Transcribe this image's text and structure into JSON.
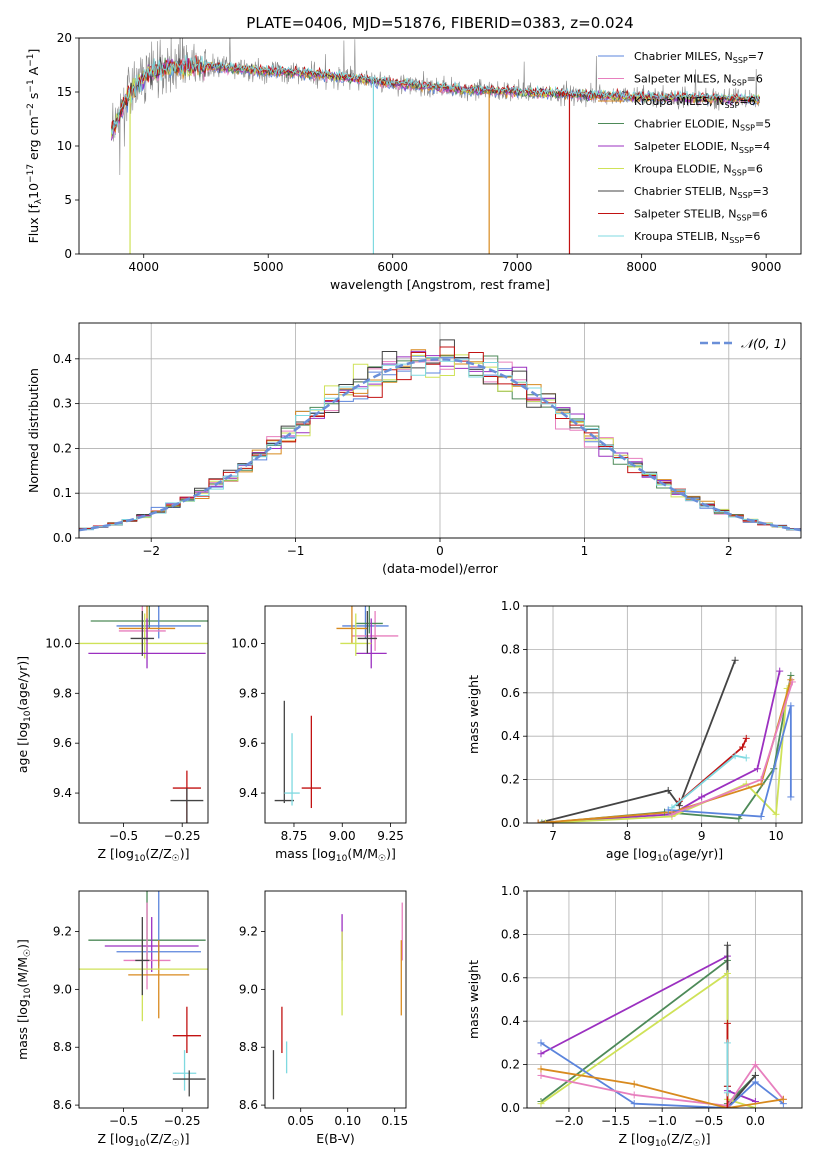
{
  "figure": {
    "title": "PLATE=0406, MJD=51876, FIBERID=0383, z=0.024"
  },
  "colors": {
    "chabrier_miles": "#5b84dc",
    "salpeter_miles": "#e77fbe",
    "kroupa_miles": "#d88a1f",
    "chabrier_elodie": "#4d8a58",
    "salpeter_elodie": "#9b30c0",
    "kroupa_elodie": "#cfe258",
    "chabrier_stelib": "#444444",
    "salpeter_stelib": "#c21212",
    "kroupa_stelib": "#7fd9e0",
    "data_spectrum": "#888888",
    "normal_curve": "#6a8fd8"
  },
  "chart_data": [
    {
      "id": "spectrum",
      "type": "line",
      "xlabel": "wavelength [Angstrom, rest frame]",
      "ylabel": "Flux [f$_\\lambda$10$^{-17}$ erg cm$^{-2}$ s$^{-1}$ A$^{-1}$]",
      "ylabel_parts": [
        "Flux [f",
        "λ",
        "10",
        "−17",
        " erg cm",
        "−2",
        " s",
        "−1",
        " A",
        "−1",
        "]"
      ],
      "xlim": [
        3480,
        9280
      ],
      "ylim": [
        0,
        20
      ],
      "xticks": [
        4000,
        5000,
        6000,
        7000,
        8000,
        9000
      ],
      "yticks": [
        0,
        5,
        10,
        15,
        20
      ],
      "legend_position": "top-right",
      "legend": [
        {
          "name": "Chabrier MILES, N",
          "sub": "SSP",
          "n": "=7"
        },
        {
          "name": "Salpeter MILES, N",
          "sub": "SSP",
          "n": "=6"
        },
        {
          "name": "Kroupa MILES, N",
          "sub": "SSP",
          "n": "=6"
        },
        {
          "name": "Chabrier ELODIE, N",
          "sub": "SSP",
          "n": "=5"
        },
        {
          "name": "Salpeter ELODIE, N",
          "sub": "SSP",
          "n": "=4"
        },
        {
          "name": "Kroupa ELODIE, N",
          "sub": "SSP",
          "n": "=6"
        },
        {
          "name": "Chabrier STELIB, N",
          "sub": "SSP",
          "n": "=3"
        },
        {
          "name": "Salpeter STELIB, N",
          "sub": "SSP",
          "n": "=6"
        },
        {
          "name": "Kroupa STELIB, N",
          "sub": "SSP",
          "n": "=6"
        }
      ],
      "continuum": {
        "x": [
          3740,
          3850,
          3950,
          4050,
          4200,
          4400,
          4600,
          4800,
          5000,
          5200,
          5500,
          5800,
          6000,
          6300,
          6600,
          7000,
          7400,
          7800,
          8200,
          8600,
          8950
        ],
        "y": [
          11.0,
          14.2,
          15.8,
          16.8,
          17.2,
          17.4,
          17.3,
          17.1,
          16.9,
          16.8,
          16.5,
          16.1,
          15.8,
          15.5,
          15.2,
          15.0,
          14.8,
          14.6,
          14.5,
          14.4,
          14.3
        ]
      },
      "dips": [
        {
          "x": 3890,
          "y": 0
        },
        {
          "x": 5845,
          "y": 0
        },
        {
          "x": 6775,
          "y": 0
        },
        {
          "x": 7420,
          "y": 0
        }
      ]
    },
    {
      "id": "residuals",
      "type": "line",
      "xlabel": "(data-model)/error",
      "ylabel": "Normed distribution",
      "xlim": [
        -2.5,
        2.5
      ],
      "ylim": [
        0,
        0.48
      ],
      "xticks": [
        -2,
        -1,
        0,
        1,
        2
      ],
      "yticks": [
        0.0,
        0.1,
        0.2,
        0.3,
        0.4
      ],
      "legend_position": "top-right",
      "legend": [
        {
          "name": "𝒩(0, 1)"
        }
      ],
      "grid": true
    },
    {
      "id": "age_vs_Z",
      "type": "scatter",
      "xlabel": "Z [log$_{10}$(Z/Z$_\\odot$)]",
      "ylabel": "age  [log$_{10}$(age/yr)]",
      "xlim": [
        -0.69,
        -0.14
      ],
      "ylim": [
        9.28,
        10.15
      ],
      "xticks": [
        -0.5,
        -0.25
      ],
      "yticks": [
        9.4,
        9.6,
        9.8,
        10.0
      ],
      "points": [
        {
          "x": -0.39,
          "y": 10.09,
          "xerr": 0.25,
          "yerr": [
            0.03,
            0.15
          ],
          "series": "chabrier_elodie"
        },
        {
          "x": -0.35,
          "y": 10.07,
          "xerr": 0.18,
          "yerr": [
            0.05,
            0.1
          ],
          "series": "chabrier_miles"
        },
        {
          "x": -0.4,
          "y": 10.06,
          "xerr": 0.12,
          "yerr": [
            0.05,
            0.18
          ],
          "series": "kroupa_miles"
        },
        {
          "x": -0.42,
          "y": 10.05,
          "xerr": 0.1,
          "yerr": [
            0.06,
            0.12
          ],
          "series": "salpeter_miles"
        },
        {
          "x": -0.41,
          "y": 10.0,
          "xerr": 0.3,
          "yerr": [
            0.06,
            0.12
          ],
          "series": "kroupa_elodie"
        },
        {
          "x": -0.4,
          "y": 9.96,
          "xerr": 0.25,
          "yerr": [
            0.06,
            0.14
          ],
          "series": "salpeter_elodie"
        },
        {
          "x": -0.42,
          "y": 10.02,
          "xerr": 0.05,
          "yerr": [
            0.07,
            0.11
          ],
          "series": "chabrier_stelib"
        },
        {
          "x": -0.23,
          "y": 9.42,
          "xerr": 0.06,
          "yerr": [
            0.3,
            0.07
          ],
          "series": "salpeter_stelib"
        },
        {
          "x": -0.23,
          "y": 9.37,
          "xerr": 0.07,
          "yerr": [
            0.3,
            0.05
          ],
          "series": "chabrier_stelib"
        }
      ]
    },
    {
      "id": "age_vs_mass",
      "type": "scatter",
      "xlabel": "mass [log$_{10}$(M/M$_\\odot$)]",
      "ylabel": "",
      "xlim": [
        8.6,
        9.33
      ],
      "ylim": [
        9.28,
        10.15
      ],
      "xticks": [
        8.75,
        9.0,
        9.25
      ],
      "yticks": [
        9.4,
        9.6,
        9.8,
        10.0
      ],
      "points": [
        {
          "x": 9.12,
          "y": 10.07,
          "xerr": 0.12,
          "yerr": [
            0.05,
            0.1
          ],
          "series": "chabrier_miles"
        },
        {
          "x": 9.17,
          "y": 10.03,
          "xerr": 0.12,
          "yerr": [
            0.06,
            0.1
          ],
          "series": "salpeter_miles"
        },
        {
          "x": 9.05,
          "y": 10.06,
          "xerr": 0.08,
          "yerr": [
            0.06,
            0.15
          ],
          "series": "kroupa_miles"
        },
        {
          "x": 9.14,
          "y": 10.08,
          "xerr": 0.07,
          "yerr": [
            0.04,
            0.12
          ],
          "series": "chabrier_elodie"
        },
        {
          "x": 9.15,
          "y": 9.96,
          "xerr": 0.08,
          "yerr": [
            0.06,
            0.14
          ],
          "series": "salpeter_elodie"
        },
        {
          "x": 9.07,
          "y": 10.0,
          "xerr": 0.08,
          "yerr": [
            0.05,
            0.12
          ],
          "series": "kroupa_elodie"
        },
        {
          "x": 9.13,
          "y": 10.02,
          "xerr": 0.05,
          "yerr": [
            0.06,
            0.11
          ],
          "series": "chabrier_stelib"
        },
        {
          "x": 8.84,
          "y": 9.42,
          "xerr": 0.05,
          "yerr": [
            0.08,
            0.29
          ],
          "series": "salpeter_stelib"
        },
        {
          "x": 8.7,
          "y": 9.37,
          "xerr": 0.05,
          "yerr": [
            0.01,
            0.4
          ],
          "series": "chabrier_stelib"
        },
        {
          "x": 8.74,
          "y": 9.4,
          "xerr": 0.04,
          "yerr": [
            0.05,
            0.24
          ],
          "series": "kroupa_stelib"
        }
      ]
    },
    {
      "id": "weight_vs_age",
      "type": "line",
      "xlabel": "age  [log$_{10}$(age/yr)]",
      "ylabel": "mass weight",
      "xlim": [
        6.65,
        10.35
      ],
      "ylim": [
        0,
        1.0
      ],
      "xticks": [
        7,
        8,
        9,
        10
      ],
      "yticks": [
        0.0,
        0.2,
        0.4,
        0.6,
        0.8,
        1.0
      ],
      "grid": true,
      "series": [
        {
          "key": "chabrier_stelib",
          "x": [
            6.8,
            8.55,
            8.7,
            9.45
          ],
          "y": [
            0.0,
            0.15,
            0.08,
            0.75
          ]
        },
        {
          "key": "salpeter_elodie",
          "x": [
            6.8,
            8.6,
            9.0,
            9.75,
            10.05
          ],
          "y": [
            0.0,
            0.04,
            0.12,
            0.25,
            0.7
          ]
        },
        {
          "key": "chabrier_elodie",
          "x": [
            6.85,
            8.5,
            9.5,
            9.97,
            10.2
          ],
          "y": [
            0.0,
            0.05,
            0.02,
            0.25,
            0.68
          ]
        },
        {
          "key": "kroupa_elodie",
          "x": [
            6.9,
            8.6,
            9.6,
            10.0,
            10.15
          ],
          "y": [
            0.0,
            0.03,
            0.18,
            0.04,
            0.62
          ]
        },
        {
          "key": "kroupa_miles",
          "x": [
            6.8,
            8.6,
            9.8,
            10.2
          ],
          "y": [
            0.0,
            0.05,
            0.18,
            0.66
          ]
        },
        {
          "key": "chabrier_miles",
          "x": [
            8.55,
            9.8,
            10.2,
            10.2
          ],
          "y": [
            0.06,
            0.03,
            0.54,
            0.12
          ]
        },
        {
          "key": "salpeter_stelib",
          "x": [
            8.7,
            9.55,
            9.6
          ],
          "y": [
            0.1,
            0.35,
            0.39
          ]
        },
        {
          "key": "kroupa_stelib",
          "x": [
            8.6,
            9.45,
            9.6
          ],
          "y": [
            0.07,
            0.31,
            0.3
          ]
        },
        {
          "key": "salpeter_miles",
          "x": [
            8.6,
            9.8,
            10.22
          ],
          "y": [
            0.04,
            0.2,
            0.65
          ]
        }
      ]
    },
    {
      "id": "mass_vs_Z",
      "type": "scatter",
      "xlabel": "Z [log$_{10}$(Z/Z$_\\odot$)]",
      "ylabel": "mass [log$_{10}$(M/M$_\\odot$)]",
      "xlim": [
        -0.69,
        -0.14
      ],
      "ylim": [
        8.59,
        9.34
      ],
      "xticks": [
        -0.5,
        -0.25
      ],
      "yticks": [
        8.6,
        8.8,
        9.0,
        9.2
      ],
      "points": [
        {
          "x": -0.4,
          "y": 9.17,
          "xerr": 0.25,
          "yerr": [
            0.07,
            0.18
          ],
          "series": "chabrier_elodie"
        },
        {
          "x": -0.38,
          "y": 9.15,
          "xerr": 0.2,
          "yerr": [
            0.09,
            0.1
          ],
          "series": "salpeter_elodie"
        },
        {
          "x": -0.35,
          "y": 9.13,
          "xerr": 0.18,
          "yerr": [
            0.05,
            0.22
          ],
          "series": "chabrier_miles"
        },
        {
          "x": -0.4,
          "y": 9.1,
          "xerr": 0.1,
          "yerr": [
            0.1,
            0.2
          ],
          "series": "salpeter_miles"
        },
        {
          "x": -0.35,
          "y": 9.05,
          "xerr": 0.13,
          "yerr": [
            0.15,
            0.12
          ],
          "series": "kroupa_miles"
        },
        {
          "x": -0.42,
          "y": 9.07,
          "xerr": 0.28,
          "yerr": [
            0.18,
            0.1
          ],
          "series": "kroupa_elodie"
        },
        {
          "x": -0.42,
          "y": 9.1,
          "xerr": 0.03,
          "yerr": [
            0.12,
            0.15
          ],
          "series": "chabrier_stelib"
        },
        {
          "x": -0.23,
          "y": 8.84,
          "xerr": 0.06,
          "yerr": [
            0.06,
            0.1
          ],
          "series": "salpeter_stelib"
        },
        {
          "x": -0.24,
          "y": 8.71,
          "xerr": 0.05,
          "yerr": [
            0.06,
            0.08
          ],
          "series": "kroupa_stelib"
        },
        {
          "x": -0.22,
          "y": 8.69,
          "xerr": 0.07,
          "yerr": [
            0.06,
            0.03
          ],
          "series": "chabrier_stelib"
        }
      ]
    },
    {
      "id": "mass_vs_ebv",
      "type": "scatter",
      "xlabel": "E(B-V)",
      "ylabel": "",
      "xlim": [
        0.012,
        0.162
      ],
      "ylim": [
        8.59,
        9.34
      ],
      "xticks": [
        0.05,
        0.1,
        0.15
      ],
      "yticks": [
        8.6,
        8.8,
        9.0,
        9.2
      ],
      "points": [
        {
          "x": 0.021,
          "y": 8.69,
          "yerr": [
            0.07,
            0.1
          ],
          "series": "chabrier_stelib"
        },
        {
          "x": 0.03,
          "y": 8.84,
          "yerr": [
            0.06,
            0.1
          ],
          "series": "salpeter_stelib"
        },
        {
          "x": 0.035,
          "y": 8.76,
          "yerr": [
            0.05,
            0.06
          ],
          "series": "kroupa_stelib"
        },
        {
          "x": 0.094,
          "y": 9.18,
          "yerr": [
            0.08,
            0.08
          ],
          "series": "salpeter_elodie"
        },
        {
          "x": 0.094,
          "y": 9.07,
          "yerr": [
            0.16,
            0.13
          ],
          "series": "kroupa_elodie"
        },
        {
          "x": 0.158,
          "y": 9.15,
          "yerr": [
            0.05,
            0.15
          ],
          "series": "salpeter_miles"
        },
        {
          "x": 0.157,
          "y": 9.05,
          "yerr": [
            0.14,
            0.12
          ],
          "series": "kroupa_miles"
        }
      ]
    },
    {
      "id": "weight_vs_Z",
      "type": "line",
      "xlabel": "Z [log$_{10}$(Z/Z$_\\odot$)]",
      "ylabel": "mass weight",
      "xlim": [
        -2.45,
        0.5
      ],
      "ylim": [
        0,
        1.0
      ],
      "xticks": [
        -2.0,
        -1.5,
        -1.0,
        -0.5,
        0.0
      ],
      "yticks": [
        0.0,
        0.2,
        0.4,
        0.6,
        0.8,
        1.0
      ],
      "grid": true,
      "series": [
        {
          "key": "salpeter_elodie",
          "x": [
            -2.3,
            -0.3,
            -0.3,
            0.0
          ],
          "y": [
            0.25,
            0.7,
            0.08,
            0.03
          ]
        },
        {
          "key": "chabrier_elodie",
          "x": [
            -2.3,
            -0.3,
            -0.3,
            0.0
          ],
          "y": [
            0.03,
            0.68,
            0.02,
            0.15
          ]
        },
        {
          "key": "chabrier_stelib",
          "x": [
            -0.3,
            -0.3,
            -0.3,
            0.0
          ],
          "y": [
            0.75,
            0.1,
            0.0,
            0.15
          ]
        },
        {
          "key": "kroupa_elodie",
          "x": [
            -2.3,
            -0.3,
            -0.3,
            0.0
          ],
          "y": [
            0.02,
            0.62,
            0.04,
            0.0
          ]
        },
        {
          "key": "chabrier_miles",
          "x": [
            -2.3,
            -1.3,
            -0.3,
            0.0,
            0.3
          ],
          "y": [
            0.3,
            0.02,
            0.0,
            0.12,
            0.02
          ]
        },
        {
          "key": "salpeter_miles",
          "x": [
            -2.3,
            -1.3,
            -0.3,
            0.0,
            0.3
          ],
          "y": [
            0.15,
            0.06,
            0.01,
            0.2,
            0.04
          ]
        },
        {
          "key": "kroupa_miles",
          "x": [
            -2.3,
            -1.3,
            -0.3,
            0.3
          ],
          "y": [
            0.18,
            0.11,
            0.0,
            0.04
          ]
        },
        {
          "key": "salpeter_stelib",
          "x": [
            -0.3,
            -0.3,
            -0.3
          ],
          "y": [
            0.39,
            0.1,
            0.0
          ]
        },
        {
          "key": "kroupa_stelib",
          "x": [
            -0.3,
            -0.3
          ],
          "y": [
            0.3,
            0.07
          ]
        }
      ]
    }
  ]
}
